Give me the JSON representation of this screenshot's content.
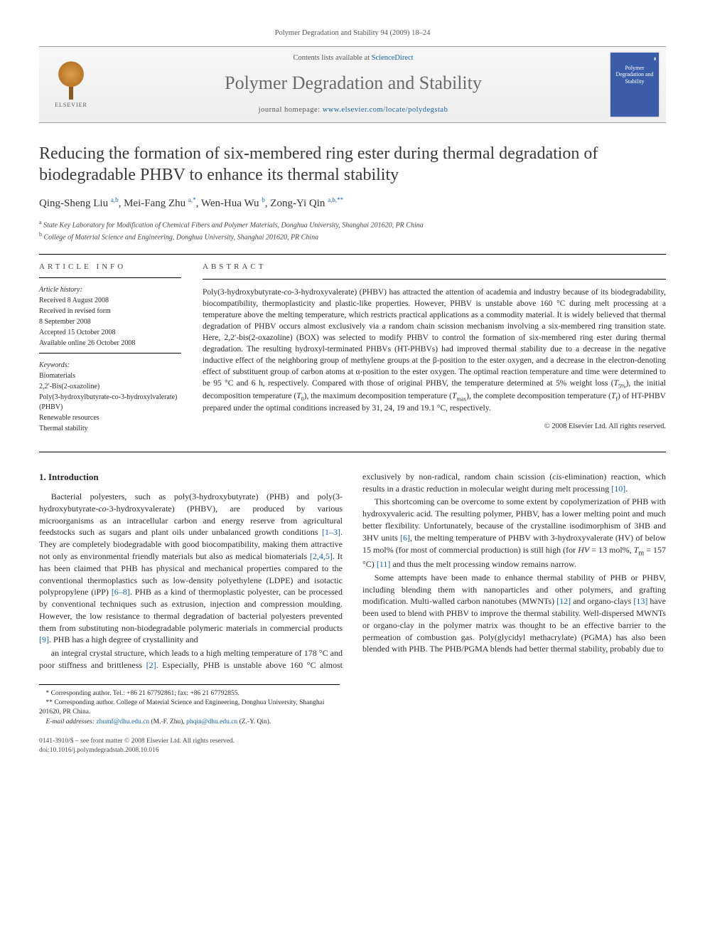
{
  "header_citation": "Polymer Degradation and Stability 94 (2009) 18–24",
  "banner": {
    "contents_prefix": "Contents lists available at ",
    "contents_link": "ScienceDirect",
    "journal_name": "Polymer Degradation and Stability",
    "homepage_prefix": "journal homepage: ",
    "homepage_url": "www.elsevier.com/locate/polydegstab",
    "publisher": "ELSEVIER",
    "cover_title": "Polymer Degradation and Stability"
  },
  "title": "Reducing the formation of six-membered ring ester during thermal degradation of biodegradable PHBV to enhance its thermal stability",
  "authors_html": "Qing-Sheng Liu <sup>a,b</sup>, Mei-Fang Zhu <sup>a,*</sup>, Wen-Hua Wu <sup>b</sup>, Zong-Yi Qin <sup>a,b,**</sup>",
  "affiliations": [
    {
      "sup": "a",
      "text": "State Key Laboratory for Modification of Chemical Fibers and Polymer Materials, Donghua University, Shanghai 201620, PR China"
    },
    {
      "sup": "b",
      "text": "College of Material Science and Engineering, Donghua University, Shanghai 201620, PR China"
    }
  ],
  "info": {
    "head": "ARTICLE INFO",
    "history_head": "Article history:",
    "history": [
      "Received 8 August 2008",
      "Received in revised form",
      "8 September 2008",
      "Accepted 15 October 2008",
      "Available online 26 October 2008"
    ],
    "keywords_head": "Keywords:",
    "keywords": [
      "Biomaterials",
      "2,2′-Bis(2-oxazoline)",
      "Poly(3-hydroxylbutyrate-co-3-hydroxylvalerate) (PHBV)",
      "Renewable resources",
      "Thermal stability"
    ]
  },
  "abstract": {
    "head": "ABSTRACT",
    "text_html": "Poly(3-hydroxybutyrate-<span class='italic'>co</span>-3-hydroxyvalerate) (PHBV) has attracted the attention of academia and industry because of its biodegradability, biocompatibility, thermoplasticity and plastic-like properties. However, PHBV is unstable above 160 °C during melt processing at a temperature above the melting temperature, which restricts practical applications as a commodity material. It is widely believed that thermal degradation of PHBV occurs almost exclusively via a random chain scission mechanism involving a six-membered ring transition state. Here, 2,2′-bis(2-oxazoline) (BOX) was selected to modify PHBV to control the formation of six-membered ring ester during thermal degradation. The resulting hydroxyl-terminated PHBVs (HT-PHBVs) had improved thermal stability due to a decrease in the negative inductive effect of the neighboring group of methylene groups at the β-position to the ester oxygen, and a decrease in the electron-denoting effect of substituent group of carbon atoms at α-position to the ester oxygen. The optimal reaction temperature and time were determined to be 95 °C and 6 h, respectively. Compared with those of original PHBV, the temperature determined at 5% weight loss (<span class='italic'>T</span><sub>5%</sub>), the initial decomposition temperature (<span class='italic'>T</span><sub>0</sub>), the maximum decomposition temperature (<span class='italic'>T</span><sub>max</sub>), the complete decomposition temperature (<span class='italic'>T</span><sub>f</sub>) of HT-PHBV prepared under the optimal conditions increased by 31, 24, 19 and 19.1 °C, respectively.",
    "copyright": "© 2008 Elsevier Ltd. All rights reserved."
  },
  "body": {
    "section_heading": "1. Introduction",
    "p1_html": "Bacterial polyesters, such as poly(3-hydroxybutyrate) (PHB) and poly(3-hydroxybutyrate-<span class='italic'>co</span>-3-hydroxyvalerate) (PHBV), are produced by various microorganisms as an intracellular carbon and energy reserve from agricultural feedstocks such as sugars and plant oils under unbalanced growth conditions <a href='#'>[1–3]</a>. They are completely biodegradable with good biocompatibility, making them attractive not only as environmental friendly materials but also as medical biomaterials <a href='#'>[2,4,5]</a>. It has been claimed that PHB has physical and mechanical properties compared to the conventional thermoplastics such as low-density polyethylene (LDPE) and isotactic polypropylene (iPP) <a href='#'>[6–8]</a>. PHB as a kind of thermoplastic polyester, can be processed by conventional techniques such as extrusion, injection and compression moulding. However, the low resistance to thermal degradation of bacterial polyesters prevented them from substituting non-biodegradable polymeric materials in commercial products <a href='#'>[9]</a>. PHB has a high degree of crystallinity and",
    "p2_html": "an integral crystal structure, which leads to a high melting temperature of 178 °C and poor stiffness and brittleness <a href='#'>[2]</a>. Especially, PHB is unstable above 160 °C almost exclusively by non-radical, random chain scission (<span class='italic'>cis</span>-elimination) reaction, which results in a drastic reduction in molecular weight during melt processing <a href='#'>[10]</a>.",
    "p3_html": "This shortcoming can be overcome to some extent by copolymerization of PHB with hydroxyvaleric acid. The resulting polymer, PHBV, has a lower melting point and much better flexibility. Unfortunately, because of the crystalline isodimorphism of 3HB and 3HV units <a href='#'>[6]</a>, the melting temperature of PHBV with 3-hydroxyvalerate (HV) of below 15 mol% (for most of commercial production) is still high (for <span class='italic'>HV</span> = 13 mol%, <span class='italic'>T</span><sub>m</sub> = 157 °C) <a href='#'>[11]</a> and thus the melt processing window remains narrow.",
    "p4_html": "Some attempts have been made to enhance thermal stability of PHB or PHBV, including blending them with nanoparticles and other polymers, and grafting modification. Multi-walled carbon nanotubes (MWNTs) <a href='#'>[12]</a> and organo-clays <a href='#'>[13]</a> have been used to blend with PHBV to improve the thermal stability. Well-dispersed MWNTs or organo-clay in the polymer matrix was thought to be an effective barrier to the permeation of combustion gas. Poly(glycidyl methacrylate) (PGMA) has also been blended with PHB. The PHB/PGMA blends had better thermal stability, probably due to"
  },
  "footnotes": {
    "f1_html": "* Corresponding author. Tel.: +86 21 67792861; fax: +86 21 67792855.",
    "f2_html": "** Corresponding author. College of Material Science and Engineering, Donghua University, Shanghai 201620, PR China.",
    "email_label": "E-mail addresses:",
    "email1": "zhumf@dhu.edu.cn",
    "email1_who": "(M.-F. Zhu),",
    "email2": "phqin@dhu.edu.cn",
    "email2_who": "(Z.-Y. Qin)."
  },
  "footer": {
    "line1": "0141-3910/$ – see front matter © 2008 Elsevier Ltd. All rights reserved.",
    "line2": "doi:10.1016/j.polymdegradstab.2008.10.016"
  },
  "colors": {
    "link": "#1661a7",
    "text": "#2a2a2a",
    "banner_bg_top": "#f7f7f7",
    "banner_bg_bottom": "#eeeeee",
    "cover_bg": "#3b5ca8"
  },
  "typography": {
    "title_fontsize": 24,
    "journal_name_fontsize": 26,
    "body_fontsize": 12,
    "abstract_fontsize": 11.5,
    "info_fontsize": 10,
    "footnote_fontsize": 9.5
  }
}
